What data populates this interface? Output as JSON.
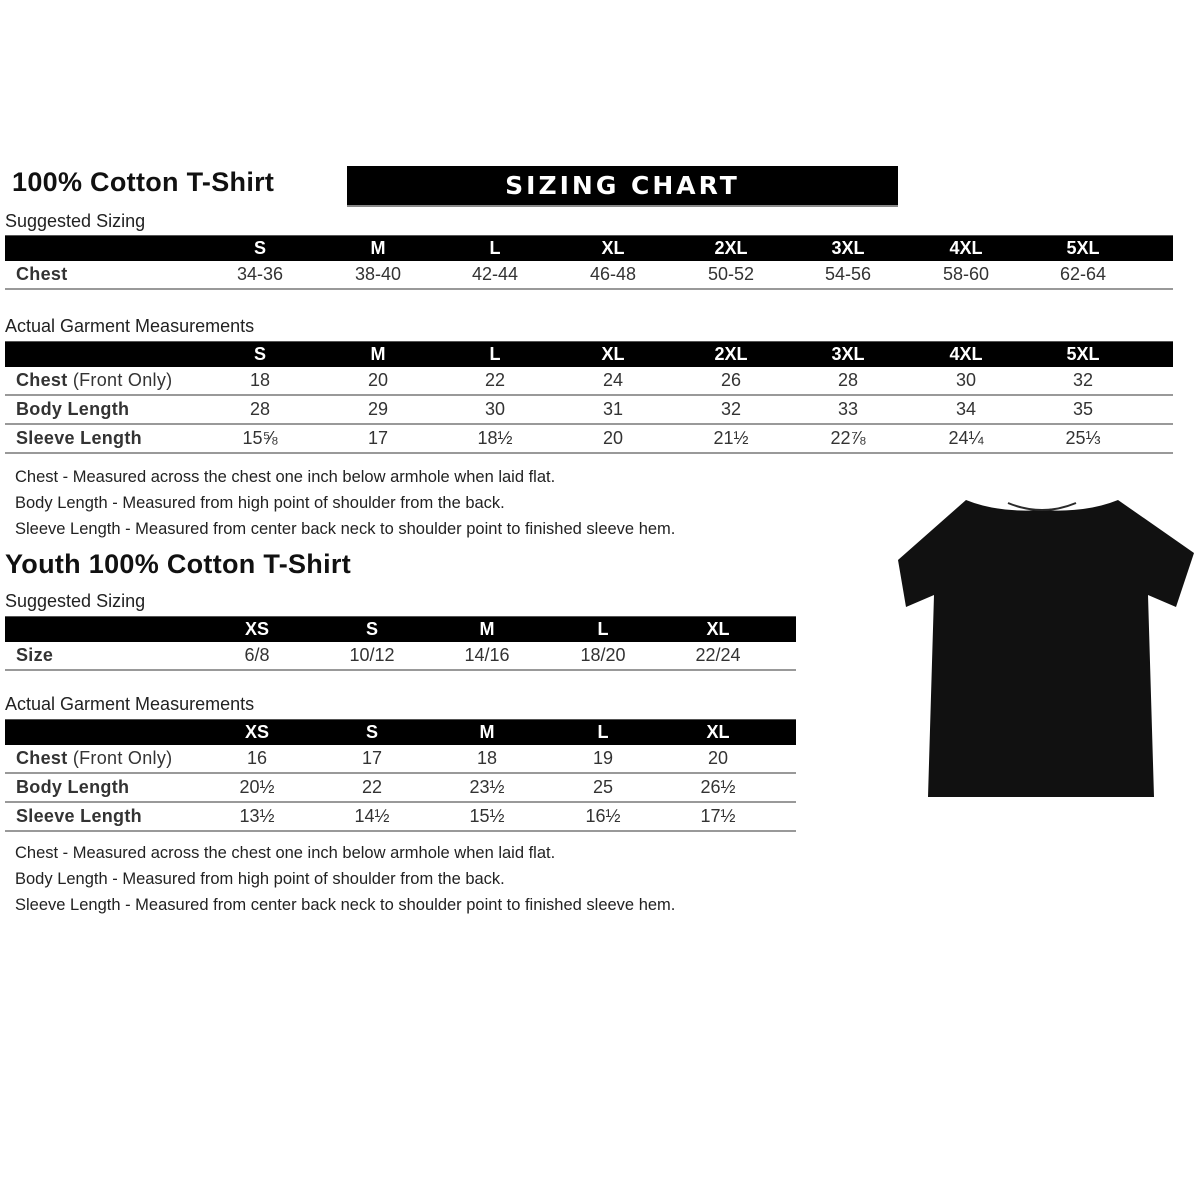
{
  "adult": {
    "title": "100% Cotton T-Shirt",
    "banner": "SIZING CHART",
    "suggested_label": "Suggested Sizing",
    "sizes": [
      "S",
      "M",
      "L",
      "XL",
      "2XL",
      "3XL",
      "4XL",
      "5XL"
    ],
    "suggested_rows": [
      {
        "label": "Chest",
        "label_rest": "",
        "values": [
          "34-36",
          "38-40",
          "42-44",
          "46-48",
          "50-52",
          "54-56",
          "58-60",
          "62-64"
        ]
      }
    ],
    "actual_label": "Actual Garment Measurements",
    "actual_rows": [
      {
        "label": "Chest",
        "label_rest": " (Front Only)",
        "values": [
          "18",
          "20",
          "22",
          "24",
          "26",
          "28",
          "30",
          "32"
        ]
      },
      {
        "label": "Body Length",
        "label_rest": "",
        "values": [
          "28",
          "29",
          "30",
          "31",
          "32",
          "33",
          "34",
          "35"
        ]
      },
      {
        "label": "Sleeve Length",
        "label_rest": "",
        "values": [
          "15⅝",
          "17",
          "18½",
          "20",
          "21½",
          "22⅞",
          "24¼",
          "25⅓"
        ]
      }
    ],
    "notes": [
      "Chest - Measured across the chest one inch below armhole when laid flat.",
      "Body Length - Measured from high point of shoulder from the back.",
      "Sleeve Length - Measured from center back neck to shoulder point to finished sleeve hem."
    ]
  },
  "youth": {
    "title": "Youth 100% Cotton T-Shirt",
    "suggested_label": "Suggested Sizing",
    "sizes": [
      "XS",
      "S",
      "M",
      "L",
      "XL"
    ],
    "suggested_rows": [
      {
        "label": "Size",
        "label_rest": "",
        "values": [
          "6/8",
          "10/12",
          "14/16",
          "18/20",
          "22/24"
        ]
      }
    ],
    "actual_label": "Actual Garment Measurements",
    "actual_rows": [
      {
        "label": "Chest",
        "label_rest": " (Front Only)",
        "values": [
          "16",
          "17",
          "18",
          "19",
          "20"
        ]
      },
      {
        "label": "Body Length",
        "label_rest": "",
        "values": [
          "20½",
          "22",
          "23½",
          "25",
          "26½"
        ]
      },
      {
        "label": "Sleeve Length",
        "label_rest": "",
        "values": [
          "13½",
          "14½",
          "15½",
          "16½",
          "17½"
        ]
      }
    ],
    "notes": [
      "Chest - Measured across the chest one inch below armhole when laid flat.",
      "Body Length - Measured from high point of shoulder from the back.",
      "Sleeve Length - Measured from center back neck to shoulder point to finished sleeve hem."
    ]
  },
  "image": {
    "shirt_color": "#111111"
  }
}
